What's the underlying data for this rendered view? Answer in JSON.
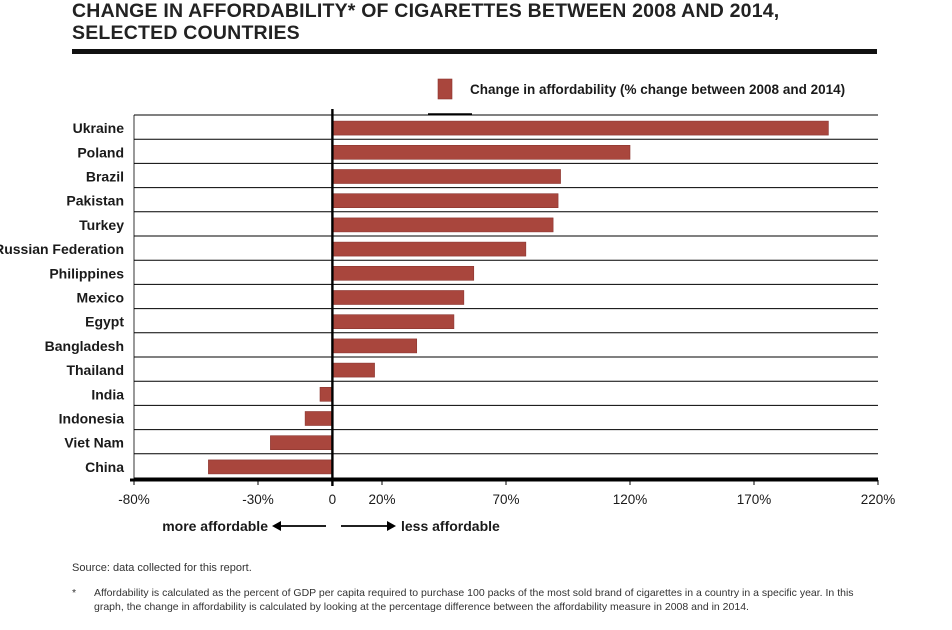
{
  "title": "CHANGE IN AFFORDABILITY* OF CIGARETTES BETWEEN 2008 AND 2014, SELECTED COUNTRIES",
  "source": "Source: data collected for this report.",
  "footnote_marker": "*",
  "footnote": "Affordability is calculated as the percent of GDP per capita required to purchase 100 packs of the most sold brand of cigarettes in a country in a specific year. In this graph, the change in affordability is calculated by looking at the percentage difference between the affordability measure in 2008 and in 2014.",
  "colors": {
    "bar": "#a9463d",
    "bar_edge": "#8a3530",
    "axis": "#000000",
    "grid": "#000000"
  },
  "chart_data": {
    "type": "bar",
    "orientation": "horizontal",
    "categories": [
      "Ukraine",
      "Poland",
      "Brazil",
      "Pakistan",
      "Turkey",
      "Russian Federation",
      "Philippines",
      "Mexico",
      "Egypt",
      "Bangladesh",
      "Thailand",
      "India",
      "Indonesia",
      "Viet Nam",
      "China"
    ],
    "series": [
      {
        "name": "Change in affordability (% change between 2008 and 2014)",
        "values": [
          200,
          120,
          92,
          91,
          89,
          78,
          57,
          53,
          49,
          34,
          17,
          -5,
          -11,
          -25,
          -50
        ]
      }
    ],
    "xlim": [
      -80,
      220
    ],
    "xticks": [
      "-80%",
      "-30%",
      "0",
      "20%",
      "70%",
      "120%",
      "170%",
      "220%"
    ],
    "xtick_values": [
      -80,
      -30,
      0,
      20,
      70,
      120,
      170,
      220
    ],
    "legend_position": "top-right",
    "annotations": {
      "left": "more affordable",
      "right": "less affordable"
    }
  }
}
